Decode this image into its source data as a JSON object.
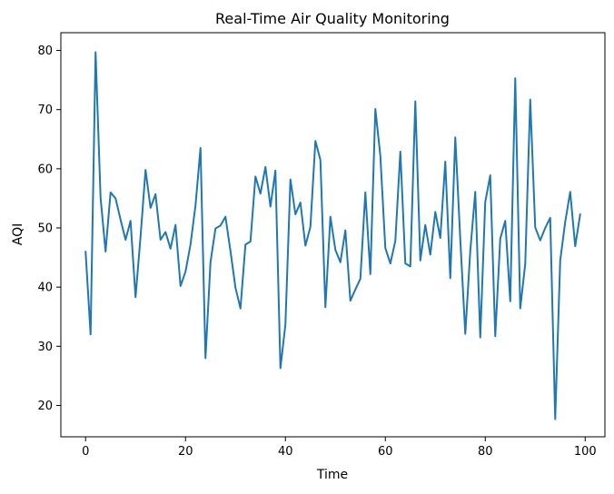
{
  "chart_data": {
    "type": "line",
    "title": "Real-Time Air Quality Monitoring",
    "xlabel": "Time",
    "ylabel": "AQI",
    "xlim": [
      -4.95,
      103.95
    ],
    "ylim": [
      14.7,
      83
    ],
    "xticks": [
      0,
      20,
      40,
      60,
      80,
      100
    ],
    "yticks": [
      20,
      30,
      40,
      50,
      60,
      70,
      80
    ],
    "grid": false,
    "line_color": "#1f77b4",
    "series": [
      {
        "x": [
          0,
          1,
          2,
          3,
          4,
          5,
          6,
          7,
          8,
          9,
          10,
          11,
          12,
          13,
          14,
          15,
          16,
          17,
          18,
          19,
          20,
          21,
          22,
          23,
          24,
          25,
          26,
          27,
          28,
          29,
          30,
          31,
          32,
          33,
          34,
          35,
          36,
          37,
          38,
          39,
          40,
          41,
          42,
          43,
          44,
          45,
          46,
          47,
          48,
          49,
          50,
          51,
          52,
          53,
          54,
          55,
          56,
          57,
          58,
          59,
          60,
          61,
          62,
          63,
          64,
          65,
          66,
          67,
          68,
          69,
          70,
          71,
          72,
          73,
          74,
          75,
          76,
          77,
          78,
          79,
          80,
          81,
          82,
          83,
          84,
          85,
          86,
          87,
          88,
          89,
          90,
          91,
          92,
          93,
          94,
          95,
          96,
          97,
          98,
          99
        ],
        "y": [
          46.0,
          32.0,
          79.7,
          55.1,
          46.0,
          56.0,
          55.0,
          51.4,
          48.0,
          51.2,
          38.3,
          48.5,
          59.8,
          53.4,
          55.7,
          48.0,
          49.3,
          46.5,
          50.5,
          40.2,
          42.6,
          47.2,
          53.8,
          63.5,
          28.0,
          44.2,
          49.9,
          50.4,
          51.9,
          46.1,
          39.9,
          36.4,
          47.2,
          47.7,
          58.7,
          55.8,
          60.3,
          53.6,
          59.7,
          26.3,
          33.7,
          58.2,
          52.3,
          54.3,
          47.0,
          50.2,
          64.7,
          61.5,
          36.6,
          51.9,
          46.3,
          44.2,
          49.6,
          37.7,
          39.6,
          41.4,
          56.0,
          42.2,
          70.1,
          62.2,
          46.6,
          44.0,
          47.8,
          62.9,
          44.0,
          43.5,
          71.4,
          44.5,
          50.5,
          45.5,
          52.7,
          48.3,
          61.2,
          41.5,
          65.3,
          48.1,
          32.1,
          46.1,
          56.1,
          31.5,
          54.4,
          58.9,
          31.7,
          48.2,
          51.2,
          37.6,
          75.3,
          36.4,
          43.9,
          71.7,
          50.1,
          47.9,
          50.0,
          51.7,
          17.7,
          44.5,
          51.0,
          56.1,
          46.9,
          52.3
        ]
      }
    ]
  }
}
